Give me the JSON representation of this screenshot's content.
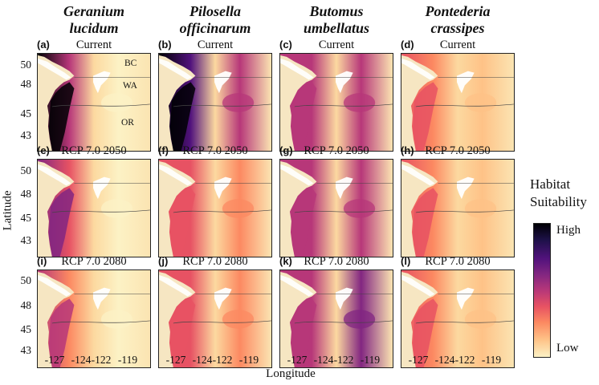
{
  "species": [
    {
      "line1": "Geranium",
      "line2": "lucidum"
    },
    {
      "line1": "Pilosella",
      "line2": "officinarum"
    },
    {
      "line1": "Butomus",
      "line2": "umbellatus"
    },
    {
      "line1": "Pontederia",
      "line2": "crassipes"
    }
  ],
  "panels": [
    {
      "letter": "(a)",
      "scenario": "Current",
      "row": 0,
      "col": 0
    },
    {
      "letter": "(b)",
      "scenario": "Current",
      "row": 0,
      "col": 1
    },
    {
      "letter": "(c)",
      "scenario": "Current",
      "row": 0,
      "col": 2
    },
    {
      "letter": "(d)",
      "scenario": "Current",
      "row": 0,
      "col": 3
    },
    {
      "letter": "(e)",
      "scenario": "RCP 7.0 2050",
      "row": 1,
      "col": 0
    },
    {
      "letter": "(f)",
      "scenario": "RCP 7.0 2050",
      "row": 1,
      "col": 1
    },
    {
      "letter": "(g)",
      "scenario": "RCP 7.0 2050",
      "row": 1,
      "col": 2
    },
    {
      "letter": "(h)",
      "scenario": "RCP 7.0 2050",
      "row": 1,
      "col": 3
    },
    {
      "letter": "(i)",
      "scenario": "RCP 7.0 2080",
      "row": 2,
      "col": 0
    },
    {
      "letter": "(j)",
      "scenario": "RCP 7.0 2080",
      "row": 2,
      "col": 1
    },
    {
      "letter": "(k)",
      "scenario": "RCP 7.0 2080",
      "row": 2,
      "col": 2
    },
    {
      "letter": "(l)",
      "scenario": "RCP 7.0 2080",
      "row": 2,
      "col": 3
    }
  ],
  "region_labels": [
    "BC",
    "WA",
    "OR"
  ],
  "axes": {
    "y_label": "Latitude",
    "x_label": "Longitude",
    "y_ticks": [
      "50",
      "48",
      "45",
      "43"
    ],
    "x_ticks": [
      "-127",
      "-124",
      "-122",
      "-119"
    ]
  },
  "legend": {
    "title_line1": "Habitat",
    "title_line2": "Suitability",
    "high": "High",
    "low": "Low",
    "colors": [
      "#000004",
      "#51127c",
      "#b73779",
      "#fc8961",
      "#fcf2c5"
    ]
  },
  "suitability": {
    "(a)": {
      "coast": 0.95,
      "east": 0.05
    },
    "(b)": {
      "coast": 0.9,
      "east": 0.5
    },
    "(c)": {
      "coast": 0.45,
      "east": 0.5
    },
    "(d)": {
      "coast": 0.35,
      "east": 0.15
    },
    "(e)": {
      "coast": 0.6,
      "east": 0.1
    },
    "(f)": {
      "coast": 0.4,
      "east": 0.3
    },
    "(g)": {
      "coast": 0.45,
      "east": 0.5
    },
    "(h)": {
      "coast": 0.35,
      "east": 0.2
    },
    "(i)": {
      "coast": 0.5,
      "east": 0.1
    },
    "(j)": {
      "coast": 0.4,
      "east": 0.3
    },
    "(k)": {
      "coast": 0.5,
      "east": 0.6
    },
    "(l)": {
      "coast": 0.4,
      "east": 0.2
    }
  }
}
